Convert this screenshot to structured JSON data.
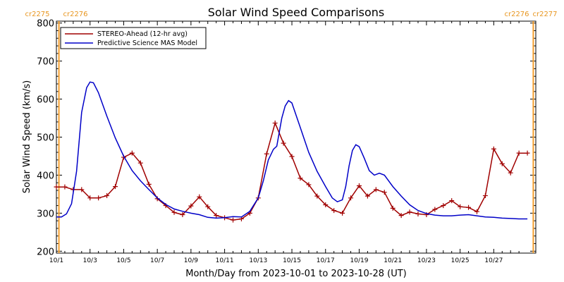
{
  "chart_data": {
    "type": "line",
    "title": "Solar Wind Speed Comparisons",
    "xlabel": "Month/Day from 2023-10-01 to 2023-10-28 (UT)",
    "ylabel": "Solar Wind Speed (km/s)",
    "x_unit": "days since 2023-10-01 00:00 UT",
    "xlim": [
      0,
      28.5
    ],
    "ylim": [
      195,
      805
    ],
    "x_ticks": [
      {
        "x": 0,
        "label": "10/1"
      },
      {
        "x": 2,
        "label": "10/3"
      },
      {
        "x": 4,
        "label": "10/5"
      },
      {
        "x": 6,
        "label": "10/7"
      },
      {
        "x": 8,
        "label": "10/9"
      },
      {
        "x": 10,
        "label": "10/11"
      },
      {
        "x": 12,
        "label": "10/13"
      },
      {
        "x": 14,
        "label": "10/15"
      },
      {
        "x": 16,
        "label": "10/17"
      },
      {
        "x": 18,
        "label": "10/19"
      },
      {
        "x": 20,
        "label": "10/21"
      },
      {
        "x": 22,
        "label": "10/23"
      },
      {
        "x": 24,
        "label": "10/25"
      },
      {
        "x": 26,
        "label": "10/27"
      }
    ],
    "y_ticks": [
      200,
      300,
      400,
      500,
      600,
      700,
      800
    ],
    "rotation_markers": [
      {
        "x": 0.15,
        "label_left": "cr2275",
        "label_right": "cr2276",
        "side": "top-left"
      },
      {
        "x": 28.35,
        "label_left": "cr2276",
        "label_right": "cr2277",
        "side": "top-right"
      }
    ],
    "marker_color": "#f5a030",
    "legend": {
      "placement": "top-left"
    },
    "grid": false,
    "series": [
      {
        "name": "STEREO-Ahead (12-hr avg)",
        "color": "#a00000",
        "marker": "plus",
        "x": [
          0,
          0.5,
          1.0,
          1.5,
          2.0,
          2.5,
          3.0,
          3.5,
          4.0,
          4.5,
          5.0,
          5.5,
          6.0,
          6.5,
          7.0,
          7.5,
          8.0,
          8.5,
          9.0,
          9.5,
          10.0,
          10.5,
          11.0,
          11.5,
          12.0,
          12.5,
          13.0,
          13.5,
          14.0,
          14.5,
          15.0,
          15.5,
          16.0,
          16.5,
          17.0,
          17.5,
          18.0,
          18.5,
          19.0,
          19.5,
          20.0,
          20.5,
          21.0,
          21.5,
          22.0,
          22.5,
          23.0,
          23.5,
          24.0,
          24.5,
          25.0,
          25.5,
          26.0,
          26.5,
          27.0,
          27.5,
          28.0
        ],
        "y": [
          369,
          369,
          362,
          362,
          340,
          340,
          346,
          370,
          447,
          458,
          432,
          376,
          338,
          320,
          302,
          296,
          319,
          343,
          317,
          294,
          288,
          282,
          285,
          300,
          340,
          456,
          537,
          484,
          449,
          392,
          375,
          345,
          322,
          307,
          300,
          340,
          372,
          345,
          362,
          355,
          313,
          294,
          303,
          298,
          296,
          310,
          320,
          333,
          317,
          315,
          304,
          346,
          469,
          430,
          406,
          458,
          458
        ]
      },
      {
        "name": "Predictive Science MAS Model",
        "color": "#0000c8",
        "marker": "none",
        "x": [
          0,
          0.3,
          0.6,
          0.9,
          1.2,
          1.5,
          1.8,
          2.0,
          2.2,
          2.5,
          3.0,
          3.5,
          4.0,
          4.5,
          5.0,
          5.5,
          6.0,
          6.5,
          7.0,
          7.5,
          8.0,
          8.5,
          9.0,
          9.5,
          10.0,
          10.5,
          11.0,
          11.5,
          12.0,
          12.3,
          12.6,
          12.9,
          13.1,
          13.4,
          13.6,
          13.8,
          14.0,
          14.5,
          15.0,
          15.5,
          16.0,
          16.4,
          16.7,
          17.0,
          17.2,
          17.4,
          17.6,
          17.8,
          18.0,
          18.3,
          18.6,
          18.9,
          19.2,
          19.5,
          20.0,
          20.5,
          21.0,
          21.5,
          22.0,
          22.5,
          23.0,
          23.5,
          24.0,
          24.5,
          25.0,
          25.5,
          26.0,
          26.5,
          27.0,
          27.5,
          28.0
        ],
        "y": [
          290,
          290,
          298,
          325,
          410,
          565,
          630,
          645,
          643,
          617,
          555,
          498,
          450,
          412,
          385,
          362,
          340,
          323,
          311,
          305,
          300,
          296,
          289,
          287,
          288,
          291,
          290,
          305,
          340,
          385,
          440,
          468,
          476,
          550,
          582,
          596,
          590,
          525,
          460,
          410,
          370,
          340,
          330,
          335,
          370,
          425,
          465,
          480,
          475,
          445,
          412,
          400,
          405,
          400,
          370,
          345,
          322,
          307,
          299,
          295,
          293,
          293,
          295,
          296,
          293,
          290,
          289,
          287,
          286,
          285,
          285
        ]
      }
    ]
  }
}
